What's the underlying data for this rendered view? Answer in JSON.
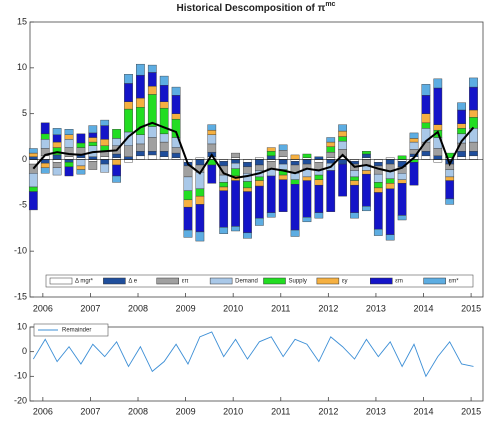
{
  "chart_data": [
    {
      "type": "bar",
      "stacked": true,
      "title": "Historical Descomposition of π",
      "title_superscript": "mc",
      "x": [
        2005.8,
        2006.05,
        2006.3,
        2006.55,
        2006.8,
        2007.05,
        2007.3,
        2007.55,
        2007.8,
        2008.05,
        2008.3,
        2008.55,
        2008.8,
        2009.05,
        2009.3,
        2009.55,
        2009.8,
        2010.05,
        2010.3,
        2010.55,
        2010.8,
        2011.05,
        2011.3,
        2011.55,
        2011.8,
        2012.05,
        2012.3,
        2012.55,
        2012.8,
        2013.05,
        2013.3,
        2013.55,
        2013.8,
        2014.05,
        2014.3,
        2014.55,
        2014.8,
        2015.05
      ],
      "xlim": [
        2005.73,
        2015.25
      ],
      "xticks": [
        2006,
        2007,
        2008,
        2009,
        2010,
        2011,
        2012,
        2013,
        2014,
        2015
      ],
      "ylim": [
        -15,
        15
      ],
      "yticks": [
        -15,
        -10,
        -5,
        0,
        5,
        10,
        15
      ],
      "legend": "bottom",
      "series": [
        {
          "name": "Δ mgr*",
          "color": "#ffffff",
          "values": [
            -0.5,
            0.4,
            -0.3,
            0.3,
            0.2,
            -0.2,
            0.3,
            0.2,
            -0.3,
            0.4,
            0.5,
            0.3,
            0.2,
            -0.3,
            0.2,
            0.3,
            -0.2,
            0.2,
            -0.3,
            0.2,
            -0.2,
            0.3,
            -0.2,
            0.2,
            -0.3,
            0.2,
            0.3,
            -0.2,
            0.2,
            -0.3,
            0.2,
            -0.2,
            0.3,
            0.4,
            -0.3,
            0.2,
            0.3,
            0.4
          ]
        },
        {
          "name": "Δ e",
          "color": "#1f4e9c",
          "values": [
            0.3,
            -0.4,
            0.5,
            -0.3,
            0.4,
            0.3,
            -0.5,
            0.4,
            0.3,
            0.5,
            0.4,
            0.6,
            0.5,
            -0.4,
            -0.6,
            0.5,
            -0.5,
            -0.4,
            -0.5,
            -0.6,
            0.4,
            -0.5,
            -0.4,
            -0.5,
            0.3,
            -0.4,
            -0.5,
            -0.3,
            0.4,
            -0.4,
            -0.5,
            -0.6,
            0.3,
            0.5,
            0.4,
            -0.5,
            0.6,
            0.5
          ]
        },
        {
          "name": "επ",
          "color": "#a0a0a0",
          "values": [
            -1,
            0.8,
            -0.6,
            1,
            0.7,
            -0.9,
            0.6,
            0.9,
            1.2,
            0.8,
            1.5,
            1,
            0.6,
            -1.2,
            -0.8,
            0.9,
            -1,
            0.5,
            -0.7,
            -0.6,
            -0.8,
            0.7,
            -0.9,
            -0.5,
            -0.8,
            0.6,
            0.8,
            -0.7,
            -0.6,
            -0.9,
            -0.8,
            -0.7,
            0.5,
            1,
            0.8,
            -0.6,
            0.9,
            1
          ]
        },
        {
          "name": "Demand",
          "color": "#a9c8e8",
          "values": [
            -1.5,
            1,
            -0.8,
            0.9,
            -0.7,
            1.2,
            -0.9,
            0.8,
            1.5,
            1,
            1.2,
            0.9,
            1.1,
            -1.5,
            -1.8,
            1,
            -0.8,
            -0.6,
            -0.9,
            -0.7,
            -0.8,
            -0.6,
            -0.7,
            -0.9,
            -0.6,
            -0.8,
            0.9,
            -0.7,
            -0.6,
            -0.9,
            -0.8,
            -0.7,
            0.8,
            1.5,
            1.2,
            -0.8,
            1,
            1.5
          ]
        },
        {
          "name": "Supply",
          "color": "#22dd22",
          "values": [
            -0.5,
            0.6,
            0.8,
            -0.5,
            0.5,
            0.4,
            0.6,
            1,
            2.5,
            3,
            3.5,
            2.8,
            2,
            -1,
            -0.8,
            -0.6,
            -0.5,
            -0.8,
            -0.7,
            -0.4,
            0.5,
            -0.6,
            -0.5,
            0.4,
            -0.5,
            0.6,
            0.5,
            -0.4,
            0.3,
            -0.6,
            -0.5,
            0.4,
            -0.3,
            0.6,
            0.8,
            0.5,
            0.6,
            1.2
          ]
        },
        {
          "name": "εy",
          "color": "#f5b041",
          "values": [
            0.4,
            -0.5,
            0.6,
            0.5,
            -0.4,
            0.5,
            0.7,
            -0.6,
            0.8,
            1,
            0.9,
            0.7,
            0.6,
            -0.8,
            -0.9,
            0.5,
            -0.4,
            -0.5,
            -0.4,
            -0.6,
            0.4,
            -0.5,
            0.5,
            -0.4,
            -0.6,
            0.5,
            0.6,
            -0.5,
            -0.4,
            -0.5,
            -0.6,
            -0.4,
            0.4,
            1,
            0.6,
            -0.4,
            0.5,
            0.8
          ]
        },
        {
          "name": "εm",
          "color": "#1414c8",
          "values": [
            -2,
            1.2,
            0.8,
            -1,
            1,
            0.5,
            1.5,
            -1.2,
            2,
            2.5,
            1.5,
            1.8,
            2,
            -2.5,
            -3,
            -2,
            -4,
            -5,
            -4.5,
            -3.5,
            -4,
            -3.5,
            -5,
            -4,
            -3,
            -4.5,
            -3.5,
            -3,
            -3.5,
            -4,
            -5,
            -3.5,
            -2.5,
            2,
            4,
            -2,
            1.5,
            2.5
          ]
        },
        {
          "name": "εm*",
          "color": "#5dade2",
          "values": [
            0.5,
            -0.6,
            0.7,
            0.6,
            -0.5,
            0.8,
            0.6,
            -0.7,
            1,
            1.2,
            0.8,
            1,
            0.9,
            -0.8,
            -1,
            0.6,
            -0.7,
            -0.5,
            -0.6,
            -0.8,
            -0.5,
            0.6,
            -0.7,
            -0.5,
            -0.6,
            0.5,
            0.7,
            -0.6,
            -0.5,
            -0.7,
            -0.6,
            -0.5,
            0.6,
            1.2,
            1,
            -0.6,
            0.8,
            1
          ]
        }
      ],
      "line": {
        "color": "#000000",
        "values": [
          -1,
          0.5,
          0.8,
          0.6,
          0.5,
          0.8,
          0.9,
          1,
          2.5,
          3.5,
          4,
          3.5,
          3,
          -0.5,
          -1.5,
          0.5,
          -1.5,
          -2,
          -1.8,
          -1.5,
          -1,
          -1.2,
          -1.5,
          -1,
          -1.2,
          -0.8,
          0.5,
          -0.8,
          -0.6,
          -1,
          -1.3,
          -0.9,
          0.2,
          2,
          3,
          -0.5,
          2,
          3.5
        ]
      }
    },
    {
      "type": "line",
      "x": [
        2005.8,
        2006.05,
        2006.3,
        2006.55,
        2006.8,
        2007.05,
        2007.3,
        2007.55,
        2007.8,
        2008.05,
        2008.3,
        2008.55,
        2008.8,
        2009.05,
        2009.3,
        2009.55,
        2009.8,
        2010.05,
        2010.3,
        2010.55,
        2010.8,
        2011.05,
        2011.3,
        2011.55,
        2011.8,
        2012.05,
        2012.3,
        2012.55,
        2012.8,
        2013.05,
        2013.3,
        2013.55,
        2013.8,
        2014.05,
        2014.3,
        2014.55,
        2014.8,
        2015.05
      ],
      "xlim": [
        2005.73,
        2015.25
      ],
      "xticks": [
        2006,
        2007,
        2008,
        2009,
        2010,
        2011,
        2012,
        2013,
        2014,
        2015
      ],
      "ylim": [
        -20,
        10
      ],
      "yticks": [
        -20,
        -10,
        0,
        10
      ],
      "legend": "top-left",
      "series": [
        {
          "name": "Remainder",
          "color": "#3d8fd6",
          "values": [
            -3,
            5,
            -4,
            2,
            -5,
            3,
            -2,
            4,
            -6,
            2,
            -8,
            -4,
            3,
            -5,
            6,
            8,
            -2,
            5,
            -3,
            4,
            6,
            -2,
            5,
            3,
            -4,
            6,
            2,
            -3,
            5,
            -2,
            4,
            -6,
            3,
            -10,
            -2,
            4,
            -5,
            -6
          ]
        }
      ]
    }
  ]
}
